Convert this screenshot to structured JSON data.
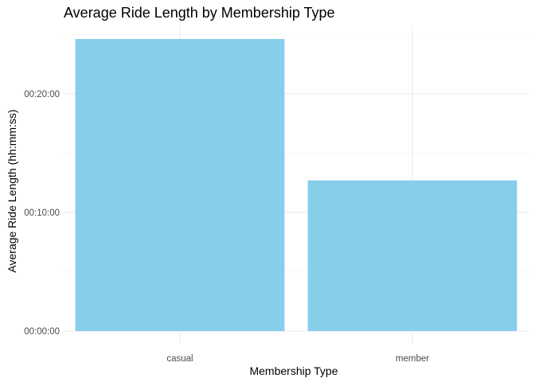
{
  "chart_data": {
    "type": "bar",
    "title": "Average Ride Length by Membership Type",
    "xlabel": "Membership Type",
    "ylabel": "Average Ride Length (hh:mm:ss)",
    "categories": [
      "casual",
      "member"
    ],
    "values_seconds": [
      1477,
      762
    ],
    "ylim_seconds": [
      0,
      1500
    ],
    "yticks": [
      {
        "value": 0,
        "label": "00:00:00"
      },
      {
        "value": 600,
        "label": "00:10:00"
      },
      {
        "value": 1200,
        "label": "00:20:00"
      }
    ],
    "bar_color": "#87CEEB",
    "grid": true,
    "legend": "none"
  }
}
